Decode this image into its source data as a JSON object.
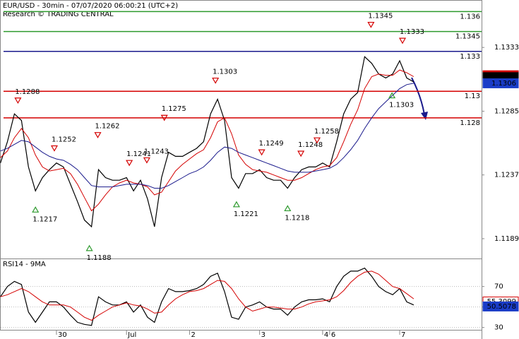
{
  "chart_data": [
    {
      "type": "line",
      "title": "EUR/USD - 30min - 07/07/2020 06:00:21 (UTC+2)",
      "subtitle": "Research © TRADING CENTRAL",
      "ylim": [
        1.11741,
        1.13687
      ],
      "yticks": [
        1.1333,
        1.1285,
        1.1237,
        1.1189
      ],
      "series": [
        {
          "color": "#000000",
          "values": [
            1.1246,
            1.1262,
            1.1283,
            1.1278,
            1.1243,
            1.1225,
            1.1235,
            1.1241,
            1.1246,
            1.1243,
            1.123,
            1.1217,
            1.1203,
            1.1198,
            1.1241,
            1.1235,
            1.1233,
            1.1233,
            1.1235,
            1.1225,
            1.1233,
            1.1219,
            1.1198,
            1.1235,
            1.1254,
            1.1251,
            1.1251,
            1.1254,
            1.1257,
            1.1262,
            1.1283,
            1.1294,
            1.1278,
            1.1235,
            1.1227,
            1.1238,
            1.1238,
            1.1241,
            1.1235,
            1.1233,
            1.1233,
            1.1227,
            1.1235,
            1.1241,
            1.1243,
            1.1243,
            1.1246,
            1.1243,
            1.1262,
            1.1283,
            1.1294,
            1.1299,
            1.1326,
            1.1321,
            1.1313,
            1.131,
            1.1313,
            1.1323,
            1.131,
            1.1307
          ]
        },
        {
          "color": "#d40000",
          "values": [
            1.125,
            1.1255,
            1.1265,
            1.1272,
            1.1265,
            1.1252,
            1.1243,
            1.124,
            1.1241,
            1.1242,
            1.1238,
            1.123,
            1.122,
            1.121,
            1.1215,
            1.1222,
            1.1228,
            1.1231,
            1.1233,
            1.1231,
            1.123,
            1.1228,
            1.1222,
            1.1224,
            1.1232,
            1.124,
            1.1245,
            1.1249,
            1.1253,
            1.1256,
            1.1265,
            1.1277,
            1.128,
            1.1268,
            1.1252,
            1.1245,
            1.1241,
            1.124,
            1.1239,
            1.1237,
            1.1235,
            1.1233,
            1.1233,
            1.1235,
            1.1238,
            1.1241,
            1.1243,
            1.1244,
            1.125,
            1.1262,
            1.1275,
            1.1286,
            1.1302,
            1.1311,
            1.1313,
            1.1312,
            1.1312,
            1.1316,
            1.1314,
            1.1311
          ]
        },
        {
          "color": "#1a1a8c",
          "values": [
            1.1255,
            1.1257,
            1.126,
            1.1263,
            1.1262,
            1.1258,
            1.1254,
            1.1251,
            1.1249,
            1.1248,
            1.1245,
            1.1241,
            1.1235,
            1.1229,
            1.1228,
            1.1228,
            1.1228,
            1.1229,
            1.123,
            1.123,
            1.123,
            1.1229,
            1.1227,
            1.1227,
            1.1229,
            1.1232,
            1.1235,
            1.1238,
            1.124,
            1.1243,
            1.1248,
            1.1254,
            1.1258,
            1.1257,
            1.1254,
            1.1252,
            1.125,
            1.1248,
            1.1246,
            1.1244,
            1.1242,
            1.124,
            1.1239,
            1.1239,
            1.1239,
            1.124,
            1.1241,
            1.1242,
            1.1245,
            1.125,
            1.1256,
            1.1263,
            1.1272,
            1.128,
            1.1287,
            1.1292,
            1.1297,
            1.1302,
            1.1305,
            1.1306
          ]
        }
      ],
      "levels": [
        {
          "value": 1.136,
          "color": "#2e9a2e"
        },
        {
          "value": 1.1345,
          "color": "#2e9a2e"
        },
        {
          "value": 1.133,
          "color": "#1a1a8c"
        },
        {
          "value": 1.13,
          "color": "#d40000"
        },
        {
          "value": 1.128,
          "color": "#d40000"
        }
      ],
      "tags": [
        {
          "value": 1.1312,
          "color": "#d40000",
          "text_color": "#ffffff"
        },
        {
          "value": 1.13106,
          "color": "#000000",
          "text_color": "#ffffff"
        },
        {
          "value": 1.1306,
          "color": "#1a3cc8",
          "text_color": "#ffffff"
        }
      ],
      "annotations": [
        {
          "value": 1.1288,
          "at": 2.5,
          "kind": "high"
        },
        {
          "value": 1.1252,
          "at": 7.7,
          "kind": "high"
        },
        {
          "value": 1.1217,
          "at": 5,
          "kind": "low"
        },
        {
          "value": 1.1262,
          "at": 13.9,
          "kind": "high"
        },
        {
          "value": 1.1188,
          "at": 12.7,
          "kind": "low"
        },
        {
          "value": 1.1241,
          "at": 18.4,
          "kind": "high"
        },
        {
          "value": 1.1243,
          "at": 20.9,
          "kind": "high"
        },
        {
          "value": 1.1275,
          "at": 23.4,
          "kind": "high"
        },
        {
          "value": 1.1303,
          "at": 30.7,
          "kind": "high"
        },
        {
          "value": 1.1221,
          "at": 33.7,
          "kind": "low"
        },
        {
          "value": 1.1249,
          "at": 37.3,
          "kind": "high"
        },
        {
          "value": 1.1218,
          "at": 41,
          "kind": "low"
        },
        {
          "value": 1.1248,
          "at": 42.9,
          "kind": "high"
        },
        {
          "value": 1.1258,
          "at": 45.2,
          "kind": "high"
        },
        {
          "value": 1.1345,
          "at": 52.9,
          "kind": "high"
        },
        {
          "value": 1.1333,
          "at": 57.4,
          "kind": "high"
        },
        {
          "value": 1.1303,
          "at": 55.9,
          "kind": "low"
        }
      ]
    },
    {
      "type": "line",
      "title": "RSI14 - 9MA",
      "ylim": [
        27,
        96
      ],
      "yticks": [
        70,
        50,
        30
      ],
      "grid": true,
      "categories": [
        null,
        null,
        null,
        null,
        null,
        null,
        null,
        null,
        "30",
        null,
        null,
        null,
        null,
        null,
        null,
        null,
        null,
        null,
        "Jul",
        null,
        null,
        null,
        null,
        null,
        null,
        null,
        null,
        "2",
        null,
        null,
        null,
        null,
        null,
        null,
        null,
        null,
        null,
        "3",
        null,
        null,
        null,
        null,
        null,
        null,
        null,
        null,
        "4",
        "6",
        null,
        null,
        null,
        null,
        null,
        null,
        null,
        null,
        null,
        "7",
        null,
        null
      ],
      "series": [
        {
          "color": "#000000",
          "values": [
            60,
            70,
            75,
            72,
            45,
            35,
            45,
            55,
            55,
            50,
            42,
            35,
            33,
            32,
            60,
            55,
            52,
            52,
            55,
            45,
            52,
            40,
            35,
            55,
            68,
            65,
            65,
            66,
            68,
            72,
            80,
            83,
            65,
            40,
            38,
            50,
            52,
            55,
            50,
            48,
            48,
            42,
            50,
            55,
            57,
            57,
            58,
            55,
            70,
            80,
            85,
            85,
            88,
            80,
            70,
            65,
            62,
            68,
            55,
            52
          ]
        },
        {
          "color": "#d40000",
          "values": [
            60,
            62,
            65,
            68,
            65,
            60,
            55,
            52,
            52,
            52,
            50,
            45,
            40,
            37,
            42,
            46,
            50,
            52,
            54,
            52,
            51,
            48,
            44,
            45,
            52,
            58,
            62,
            65,
            66,
            68,
            72,
            76,
            75,
            68,
            58,
            50,
            46,
            48,
            50,
            50,
            49,
            48,
            48,
            50,
            53,
            55,
            56,
            57,
            60,
            66,
            74,
            80,
            84,
            85,
            82,
            76,
            70,
            68,
            63,
            58
          ]
        }
      ],
      "tags": [
        {
          "value": 55.3099,
          "color": "#d40000",
          "text_color": "#d40000"
        },
        {
          "value": 50.5078,
          "color": "#1a3cc8",
          "text_color": "#ffffff"
        }
      ]
    }
  ]
}
